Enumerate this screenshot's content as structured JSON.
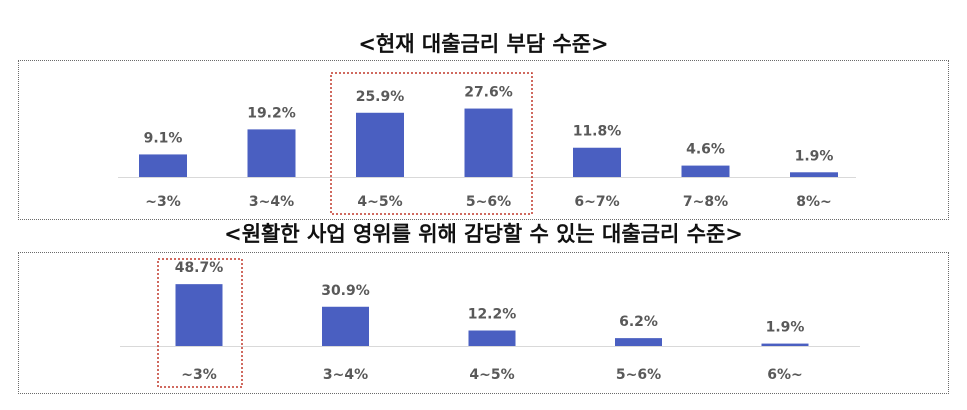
{
  "chart_data": [
    {
      "type": "bar",
      "title": "<현재 대출금리 부담 수준>",
      "categories": [
        "~3%",
        "3~4%",
        "4~5%",
        "5~6%",
        "6~7%",
        "7~8%",
        "8%~"
      ],
      "values": [
        9.1,
        19.2,
        25.9,
        27.6,
        11.8,
        4.6,
        1.9
      ],
      "value_labels": [
        "9.1%",
        "19.2%",
        "25.9%",
        "27.6%",
        "11.8%",
        "4.6%",
        "1.9%"
      ],
      "highlighted_categories": [
        "4~5%",
        "5~6%"
      ],
      "xlabel": "",
      "ylabel": "",
      "ylim": [
        0,
        30
      ],
      "grid": false,
      "bar_color": "#4a5fc1",
      "highlight_color": "#c0392b"
    },
    {
      "type": "bar",
      "title": "<원활한 사업 영위를 위해 감당할 수 있는 대출금리 수준>",
      "categories": [
        "~3%",
        "3~4%",
        "4~5%",
        "5~6%",
        "6%~"
      ],
      "values": [
        48.7,
        30.9,
        12.2,
        6.2,
        1.9
      ],
      "value_labels": [
        "48.7%",
        "30.9%",
        "12.2%",
        "6.2%",
        "1.9%"
      ],
      "highlighted_categories": [
        "~3%"
      ],
      "xlabel": "",
      "ylabel": "",
      "ylim": [
        0,
        50
      ],
      "grid": false,
      "bar_color": "#4a5fc1",
      "highlight_color": "#c0392b"
    }
  ]
}
